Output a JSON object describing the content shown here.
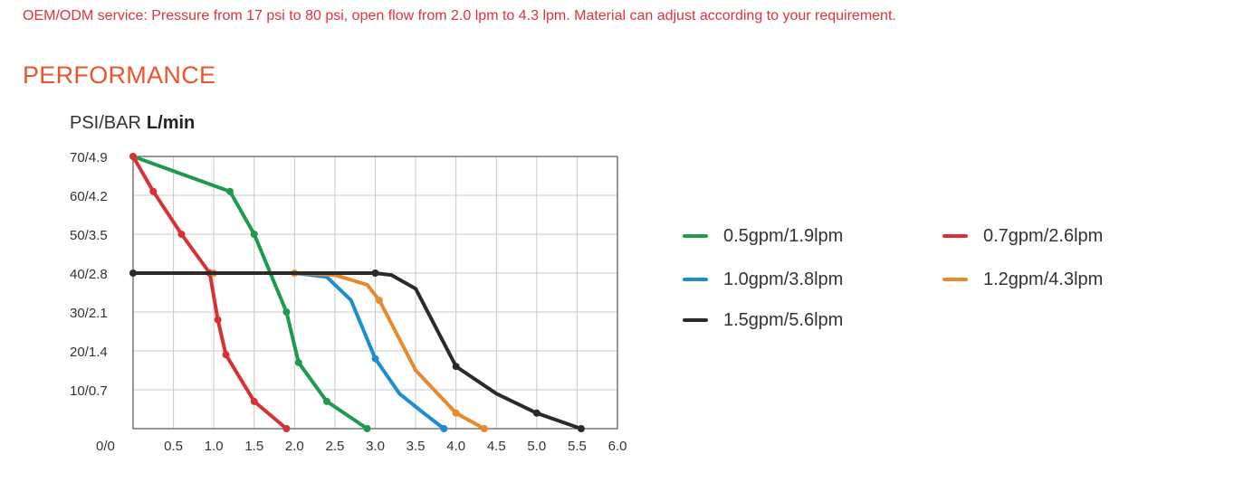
{
  "intro": "OEM/ODM service: Pressure from 17 psi to 80 psi, open flow from 2.0 lpm to 4.3 lpm. Material can adjust according to your requirement.",
  "section_title": "PERFORMANCE",
  "chart_data": {
    "type": "line",
    "ylabel": "PSI/BAR",
    "xlabel": "L/min",
    "xlim": [
      0,
      6.0
    ],
    "ylim": [
      0,
      70
    ],
    "x_ticks": [
      "0.5",
      "1.0",
      "1.5",
      "2.0",
      "2.5",
      "3.0",
      "3.5",
      "4.0",
      "4.5",
      "5.0",
      "5.5",
      "6.0"
    ],
    "y_ticks": [
      "0/0",
      "10/0.7",
      "20/1.4",
      "30/2.1",
      "40/2.8",
      "50/3.5",
      "60/4.2",
      "70/4.9"
    ],
    "grid": true,
    "legend_position": "right",
    "series": [
      {
        "name": "0.5gpm/1.9lpm",
        "color": "#1e9a50",
        "points": [
          [
            0,
            70
          ],
          [
            1.2,
            61
          ],
          [
            1.5,
            50
          ],
          [
            1.9,
            30
          ],
          [
            2.05,
            17
          ],
          [
            2.4,
            7
          ],
          [
            2.9,
            0
          ]
        ],
        "markers": [
          [
            0,
            70
          ],
          [
            1.2,
            61
          ],
          [
            1.5,
            50
          ],
          [
            1.9,
            30
          ],
          [
            2.05,
            17
          ],
          [
            2.4,
            7
          ],
          [
            2.9,
            0
          ]
        ]
      },
      {
        "name": "0.7gpm/2.6lpm",
        "color": "#d93035",
        "points": [
          [
            0,
            70
          ],
          [
            0.25,
            61
          ],
          [
            0.6,
            50
          ],
          [
            0.95,
            40
          ],
          [
            1.05,
            28
          ],
          [
            1.15,
            19
          ],
          [
            1.5,
            7
          ],
          [
            1.9,
            0
          ]
        ],
        "markers": [
          [
            0,
            70
          ],
          [
            0.25,
            61
          ],
          [
            0.6,
            50
          ],
          [
            0.95,
            40
          ],
          [
            1.05,
            28
          ],
          [
            1.15,
            19
          ],
          [
            1.5,
            7
          ],
          [
            1.9,
            0
          ]
        ]
      },
      {
        "name": "1.0gpm/3.8lpm",
        "color": "#1b8dd3",
        "points": [
          [
            0,
            40
          ],
          [
            2.0,
            40
          ],
          [
            2.4,
            39
          ],
          [
            2.7,
            33
          ],
          [
            3.0,
            18
          ],
          [
            3.3,
            9
          ],
          [
            3.6,
            4
          ],
          [
            3.85,
            0
          ]
        ],
        "markers": [
          [
            3.0,
            18
          ],
          [
            3.85,
            0
          ]
        ]
      },
      {
        "name": "1.2gpm/4.3lpm",
        "color": "#e8892b",
        "points": [
          [
            0,
            40
          ],
          [
            2.0,
            40
          ],
          [
            2.5,
            39.5
          ],
          [
            2.9,
            37
          ],
          [
            3.05,
            33
          ],
          [
            3.5,
            15
          ],
          [
            4.0,
            4
          ],
          [
            4.35,
            0
          ]
        ],
        "markers": [
          [
            1.0,
            40
          ],
          [
            2.0,
            40
          ],
          [
            3.05,
            33
          ],
          [
            4.0,
            4
          ],
          [
            4.35,
            0
          ]
        ]
      },
      {
        "name": "1.5gpm/5.6lpm",
        "color": "#2e2826",
        "points": [
          [
            0,
            40
          ],
          [
            3.0,
            40
          ],
          [
            3.2,
            39.5
          ],
          [
            3.5,
            36
          ],
          [
            4.0,
            16
          ],
          [
            4.5,
            9
          ],
          [
            5.0,
            4
          ],
          [
            5.55,
            0
          ]
        ],
        "markers": [
          [
            0,
            40
          ],
          [
            3.0,
            40
          ],
          [
            4.0,
            16
          ],
          [
            5.0,
            4
          ],
          [
            5.55,
            0
          ]
        ]
      }
    ]
  }
}
